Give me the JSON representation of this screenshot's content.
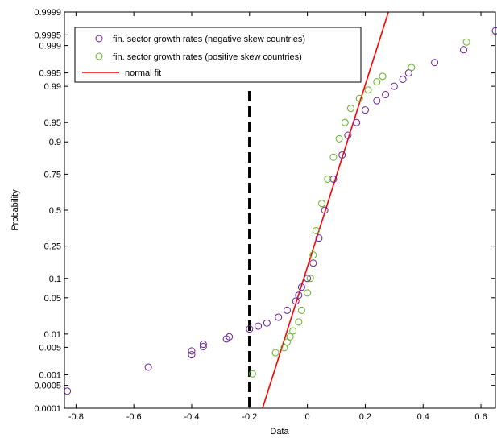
{
  "chart_data": {
    "type": "scatter",
    "subtype": "normal-probability-plot",
    "title": "",
    "xlabel": "Data",
    "ylabel": "Probability",
    "xlim": [
      -0.84,
      0.65
    ],
    "x_ticks": [
      -0.8,
      -0.6,
      -0.4,
      -0.2,
      0,
      0.2,
      0.4,
      0.6
    ],
    "x_tick_labels": [
      "-0.8",
      "-0.6",
      "-0.4",
      "-0.2",
      "0",
      "0.2",
      "0.4",
      "0.6"
    ],
    "y_scale": "normal-probability",
    "ylim": [
      0.0001,
      0.9999
    ],
    "y_ticks": [
      0.0001,
      0.0005,
      0.001,
      0.005,
      0.01,
      0.05,
      0.1,
      0.25,
      0.5,
      0.75,
      0.9,
      0.95,
      0.99,
      0.995,
      0.999,
      0.9995,
      0.9999
    ],
    "y_tick_labels": [
      "0.0001",
      "0.0005",
      "0.001",
      "0.005",
      "0.01",
      "0.05",
      "0.1",
      "0.25",
      "0.5",
      "0.75",
      "0.9",
      "0.95",
      "0.99",
      "0.995",
      "0.999",
      "0.9995",
      "0.9999"
    ],
    "grid": false,
    "legend_position": "top-left",
    "series": [
      {
        "name": "fin. sector growth rates (negative skew countries)",
        "marker": "open-circle",
        "color": "#6a1f9a",
        "points": [
          [
            -0.83,
            0.00034
          ],
          [
            -0.55,
            0.0016
          ],
          [
            -0.4,
            0.0033
          ],
          [
            -0.4,
            0.0041
          ],
          [
            -0.36,
            0.0052
          ],
          [
            -0.36,
            0.0059
          ],
          [
            -0.28,
            0.0078
          ],
          [
            -0.27,
            0.0087
          ],
          [
            -0.2,
            0.0128
          ],
          [
            -0.17,
            0.0147
          ],
          [
            -0.14,
            0.017
          ],
          [
            -0.1,
            0.0222
          ],
          [
            -0.07,
            0.03
          ],
          [
            -0.04,
            0.044
          ],
          [
            -0.03,
            0.055
          ],
          [
            -0.02,
            0.074
          ],
          [
            0.0,
            0.1
          ],
          [
            0.02,
            0.16
          ],
          [
            0.04,
            0.3
          ],
          [
            0.06,
            0.5
          ],
          [
            0.09,
            0.72
          ],
          [
            0.12,
            0.85
          ],
          [
            0.14,
            0.92
          ],
          [
            0.17,
            0.95
          ],
          [
            0.2,
            0.97
          ],
          [
            0.24,
            0.98
          ],
          [
            0.27,
            0.985
          ],
          [
            0.3,
            0.99
          ],
          [
            0.33,
            0.993
          ],
          [
            0.35,
            0.995
          ],
          [
            0.44,
            0.9972
          ],
          [
            0.54,
            0.9987
          ],
          [
            0.65,
            0.99962
          ]
        ]
      },
      {
        "name": "fin. sector growth rates (positive skew countries)",
        "marker": "open-circle",
        "color": "#5fb520",
        "points": [
          [
            -0.19,
            0.00106
          ],
          [
            -0.11,
            0.0037
          ],
          [
            -0.08,
            0.0049
          ],
          [
            -0.07,
            0.0066
          ],
          [
            -0.06,
            0.0087
          ],
          [
            -0.05,
            0.0117
          ],
          [
            -0.03,
            0.0179
          ],
          [
            -0.02,
            0.03
          ],
          [
            0.0,
            0.06
          ],
          [
            0.01,
            0.1
          ],
          [
            0.02,
            0.2
          ],
          [
            0.03,
            0.35
          ],
          [
            0.05,
            0.55
          ],
          [
            0.07,
            0.72
          ],
          [
            0.09,
            0.84
          ],
          [
            0.11,
            0.91
          ],
          [
            0.13,
            0.95
          ],
          [
            0.15,
            0.972
          ],
          [
            0.18,
            0.982
          ],
          [
            0.21,
            0.988
          ],
          [
            0.24,
            0.992
          ],
          [
            0.26,
            0.994
          ],
          [
            0.36,
            0.9963
          ],
          [
            0.55,
            0.9992
          ]
        ]
      }
    ],
    "fit_line": {
      "name": "normal fit",
      "color": "#ff0000",
      "points": [
        [
          -0.155,
          0.0001
        ],
        [
          0.28,
          0.9999
        ]
      ]
    },
    "reference_line": {
      "x": -0.2,
      "style": "dashed",
      "color": "#000000"
    }
  }
}
